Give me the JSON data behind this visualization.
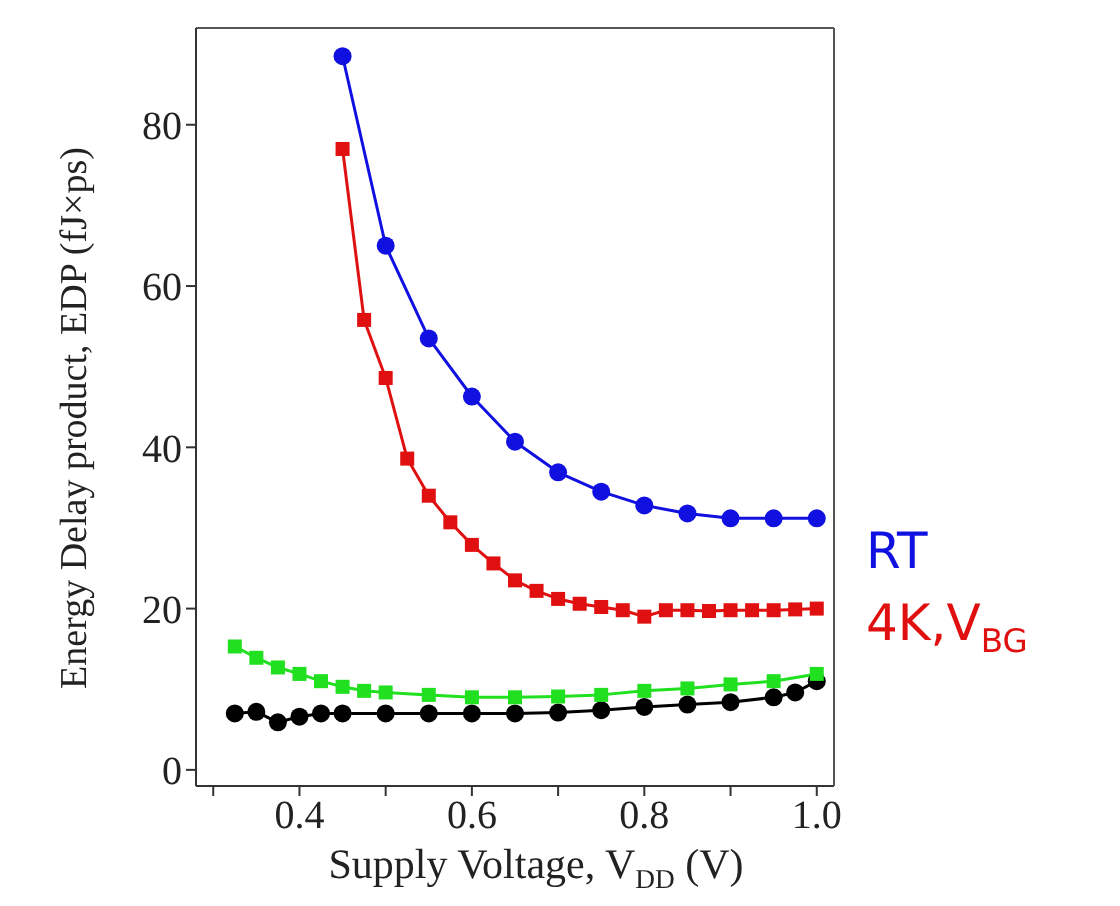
{
  "chart_data": {
    "type": "line",
    "xlabel": "Supply Voltage, V$_{DD}$ (V)",
    "ylabel": "Energy Delay product, EDP (fJ×ps)",
    "xlim": [
      0.28,
      1.02
    ],
    "ylim": [
      -2,
      92
    ],
    "xticks": [
      {
        "value": 0.3,
        "label": null
      },
      {
        "value": 0.4,
        "label": "0.4"
      },
      {
        "value": 0.5,
        "label": null
      },
      {
        "value": 0.6,
        "label": "0.6"
      },
      {
        "value": 0.7,
        "label": null
      },
      {
        "value": 0.8,
        "label": "0.8"
      },
      {
        "value": 0.9,
        "label": null
      },
      {
        "value": 1.0,
        "label": "1.0"
      }
    ],
    "yticks": [
      0,
      20,
      40,
      60,
      80
    ],
    "grid": false,
    "legend": "right",
    "series": [
      {
        "name": "RT",
        "color": "#1010e0",
        "marker": "circle",
        "x": [
          0.45,
          0.5,
          0.55,
          0.6,
          0.65,
          0.7,
          0.75,
          0.8,
          0.85,
          0.9,
          0.95,
          1.0
        ],
        "values": [
          88.5,
          65,
          53.5,
          46.3,
          40.7,
          36.9,
          34.5,
          32.8,
          31.8,
          31.2,
          31.2,
          31.2
        ]
      },
      {
        "name": "4K,V$_{BG}$",
        "color": "#e01010",
        "marker": "square",
        "x": [
          0.45,
          0.475,
          0.5,
          0.525,
          0.55,
          0.575,
          0.6,
          0.625,
          0.65,
          0.675,
          0.7,
          0.725,
          0.75,
          0.775,
          0.8,
          0.825,
          0.85,
          0.875,
          0.9,
          0.925,
          0.95,
          0.975,
          1.0
        ],
        "values": [
          77,
          55.8,
          48.6,
          38.6,
          34,
          30.7,
          27.9,
          25.6,
          23.5,
          22.2,
          21.2,
          20.6,
          20.2,
          19.8,
          19,
          19.8,
          19.8,
          19.7,
          19.8,
          19.8,
          19.8,
          19.9,
          20
        ]
      },
      {
        "color": "#000000",
        "marker": "circle",
        "x": [
          0.325,
          0.35,
          0.375,
          0.4,
          0.425,
          0.45,
          0.5,
          0.55,
          0.6,
          0.65,
          0.7,
          0.75,
          0.8,
          0.85,
          0.9,
          0.95,
          0.975,
          1.0
        ],
        "values": [
          7,
          7.2,
          5.9,
          6.6,
          7,
          7,
          7,
          7,
          7,
          7,
          7.1,
          7.4,
          7.8,
          8.1,
          8.4,
          9,
          9.6,
          11
        ]
      },
      {
        "color": "#20e020",
        "marker": "square",
        "x": [
          0.325,
          0.35,
          0.375,
          0.4,
          0.425,
          0.45,
          0.475,
          0.5,
          0.55,
          0.6,
          0.65,
          0.7,
          0.75,
          0.8,
          0.85,
          0.9,
          0.95,
          1.0
        ],
        "values": [
          15.3,
          13.9,
          12.7,
          11.9,
          11,
          10.3,
          9.8,
          9.6,
          9.3,
          9,
          9,
          9.1,
          9.3,
          9.8,
          10.1,
          10.6,
          11,
          11.9
        ]
      }
    ]
  }
}
